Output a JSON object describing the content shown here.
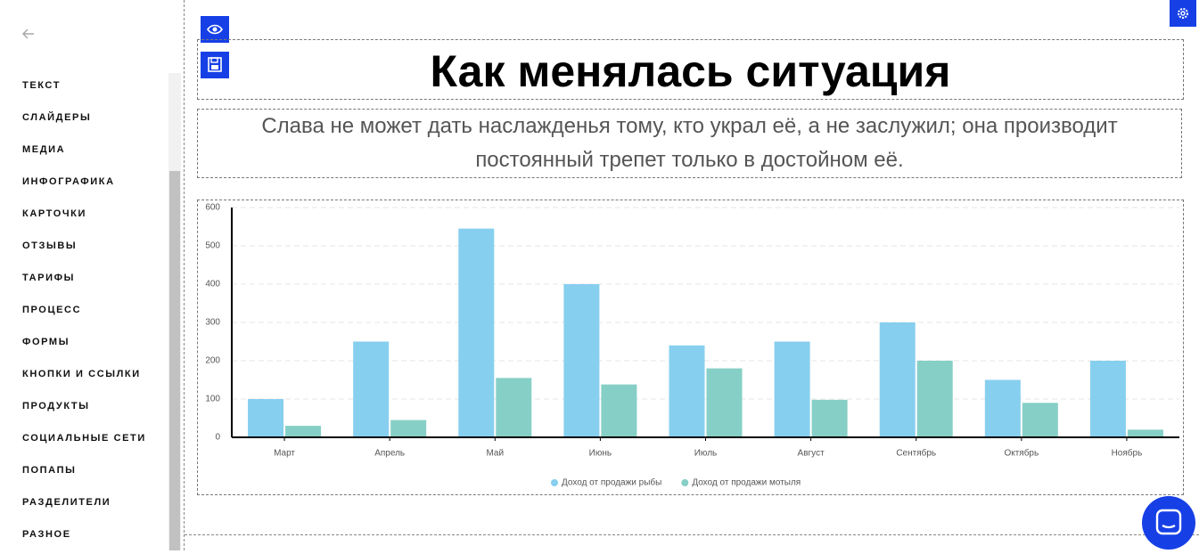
{
  "sidebar": {
    "items": [
      "ТЕКСТ",
      "СЛАЙДЕРЫ",
      "МЕДИА",
      "ИНФОГРАФИКА",
      "КАРТОЧКИ",
      "ОТЗЫВЫ",
      "ТАРИФЫ",
      "ПРОЦЕСС",
      "ФОРМЫ",
      "КНОПКИ И ССЫЛКИ",
      "ПРОДУКТЫ",
      "СОЦИАЛЬНЫЕ СЕТИ",
      "ПОПАПЫ",
      "РАЗДЕЛИТЕЛИ",
      "РАЗНОЕ"
    ]
  },
  "header": {
    "title": "Как менялась ситуация",
    "subtitle": "Слава не может дать наслажденья тому, кто украл её, а не заслужил; она производит постоянный трепет только в достойном её."
  },
  "chart_data": {
    "type": "bar",
    "categories": [
      "Март",
      "Апрель",
      "Май",
      "Июнь",
      "Июль",
      "Август",
      "Сентябрь",
      "Октябрь",
      "Ноябрь"
    ],
    "series": [
      {
        "name": "Доход от продажи рыбы",
        "color": "#87cfef",
        "values": [
          100,
          250,
          545,
          400,
          240,
          250,
          300,
          150,
          200
        ]
      },
      {
        "name": "Доход от продажи мотыля",
        "color": "#86cfc6",
        "values": [
          30,
          45,
          155,
          138,
          180,
          98,
          200,
          90,
          20
        ]
      }
    ],
    "ylim": [
      0,
      600
    ],
    "yticks": [
      0,
      100,
      200,
      300,
      400,
      500,
      600
    ],
    "grid": true
  }
}
